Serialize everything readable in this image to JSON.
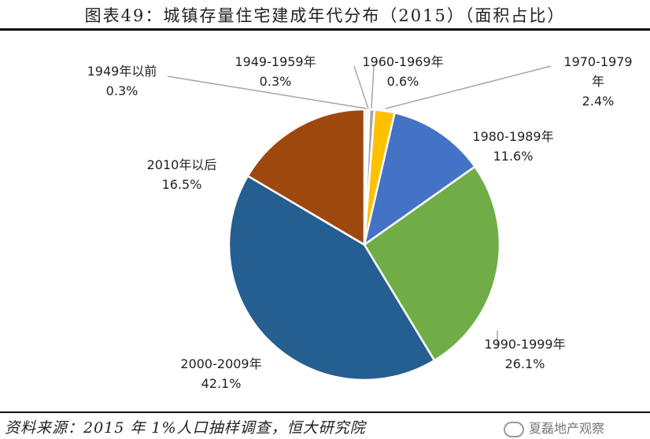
{
  "header": {
    "title": "图表49：城镇存量住宅建成年代分布（2015）（面积占比）"
  },
  "footer": {
    "source": "资料来源：2015 年 1%人口抽样调查，恒大研究院",
    "watermark": "夏磊地产观察"
  },
  "chart_data": {
    "type": "pie",
    "title": "图表49：城镇存量住宅建成年代分布（2015）（面积占比）",
    "slices": [
      {
        "label": "1949年以前",
        "value": 0.3,
        "display": "0.3%",
        "color": "#bfbfbf"
      },
      {
        "label": "1949-1959年",
        "value": 0.3,
        "display": "0.3%",
        "color": "#d9d9d9"
      },
      {
        "label": "1960-1969年",
        "value": 0.6,
        "display": "0.6%",
        "color": "#a5a5a5"
      },
      {
        "label": "1970-1979年",
        "value": 2.4,
        "display": "2.4%",
        "color": "#ffc000"
      },
      {
        "label": "1980-1989年",
        "value": 11.6,
        "display": "11.6%",
        "color": "#4472c4"
      },
      {
        "label": "1990-1999年",
        "value": 26.1,
        "display": "26.1%",
        "color": "#70ad47"
      },
      {
        "label": "2000-2009年",
        "value": 42.1,
        "display": "42.1%",
        "color": "#255e91"
      },
      {
        "label": "2010年以后",
        "value": 16.5,
        "display": "16.5%",
        "color": "#9e480e"
      }
    ],
    "legend": "none (data labels beside slices)"
  }
}
